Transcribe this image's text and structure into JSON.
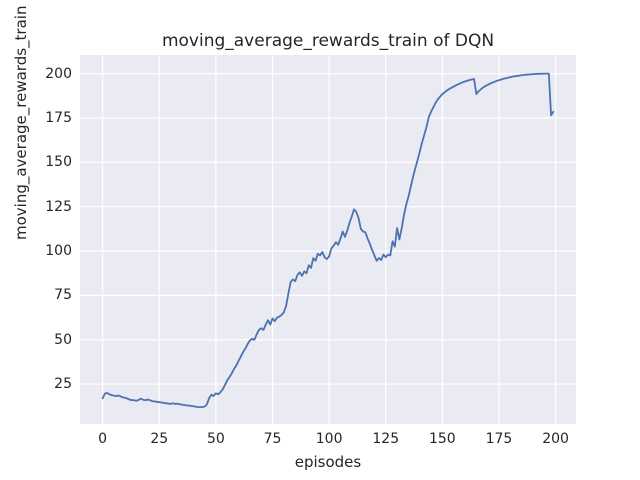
{
  "figure": {
    "background": "#ffffff"
  },
  "chart_data": {
    "type": "line",
    "title": "moving_average_rewards_train of DQN",
    "xlabel": "episodes",
    "ylabel": "moving_average_rewards_train",
    "x_ticks": [
      0,
      25,
      50,
      75,
      100,
      125,
      150,
      175,
      200
    ],
    "y_ticks": [
      25,
      50,
      75,
      100,
      125,
      150,
      175,
      200
    ],
    "xlim": [
      -10,
      209
    ],
    "ylim": [
      2.5,
      210.5
    ],
    "grid": true,
    "legend": "none",
    "style": "seaborn-darkgrid",
    "colors": {
      "line": "#4c72b0",
      "axes_background": "#eaeaf2",
      "grid": "#ffffff",
      "text": "#262626"
    },
    "series": [
      {
        "name": "moving_average_rewards_train",
        "x_start": 0,
        "x_step": 1,
        "values": [
          17.0,
          19.6,
          20.0,
          19.2,
          18.8,
          18.5,
          18.2,
          18.6,
          18.0,
          17.5,
          17.2,
          16.8,
          16.2,
          16.0,
          15.8,
          15.6,
          16.2,
          16.8,
          16.1,
          15.9,
          16.3,
          15.8,
          15.4,
          15.2,
          15.0,
          14.8,
          14.6,
          14.4,
          14.2,
          14.0,
          13.8,
          14.2,
          13.8,
          14.0,
          13.6,
          13.4,
          13.2,
          13.0,
          12.9,
          12.7,
          12.5,
          12.3,
          12.1,
          12.0,
          12.1,
          12.3,
          13.5,
          17.0,
          19.0,
          18.3,
          19.8,
          19.2,
          20.5,
          22.0,
          24.5,
          27.0,
          29.0,
          31.0,
          33.5,
          35.5,
          38.0,
          40.5,
          43.0,
          45.0,
          47.5,
          49.5,
          50.5,
          50.0,
          53.0,
          55.5,
          56.5,
          55.5,
          58.5,
          61.0,
          58.5,
          62.0,
          60.5,
          62.5,
          63.0,
          64.0,
          65.5,
          69.0,
          76.0,
          82.5,
          84.0,
          83.0,
          86.5,
          88.0,
          86.0,
          88.5,
          87.5,
          92.0,
          90.5,
          96.0,
          94.5,
          98.5,
          97.5,
          99.5,
          96.5,
          95.5,
          97.0,
          101.5,
          103.0,
          105.0,
          103.5,
          107.0,
          111.0,
          108.0,
          111.5,
          116.0,
          119.5,
          123.5,
          122.0,
          118.5,
          112.5,
          111.0,
          110.5,
          107.0,
          104.0,
          100.5,
          97.5,
          94.5,
          96.0,
          95.0,
          98.0,
          96.5,
          98.0,
          97.5,
          105.5,
          102.5,
          113.0,
          106.5,
          112.5,
          120.0,
          126.0,
          130.5,
          136.0,
          141.5,
          146.5,
          151.0,
          156.0,
          161.0,
          165.5,
          170.0,
          175.5,
          178.5,
          181.0,
          183.5,
          185.5,
          187.0,
          188.5,
          189.5,
          190.5,
          191.3,
          192.0,
          192.7,
          193.4,
          194.0,
          194.6,
          195.1,
          195.6,
          196.0,
          196.4,
          196.7,
          197.0,
          188.5,
          190.0,
          191.2,
          192.2,
          193.0,
          193.7,
          194.3,
          194.9,
          195.4,
          195.9,
          196.3,
          196.7,
          197.1,
          197.4,
          197.7,
          198.0,
          198.3,
          198.5,
          198.7,
          198.9,
          199.1,
          199.3,
          199.4,
          199.5,
          199.6,
          199.7,
          199.8,
          199.85,
          199.9,
          199.95,
          200.0,
          200.0,
          200.0,
          176.5,
          178.5
        ]
      }
    ]
  }
}
